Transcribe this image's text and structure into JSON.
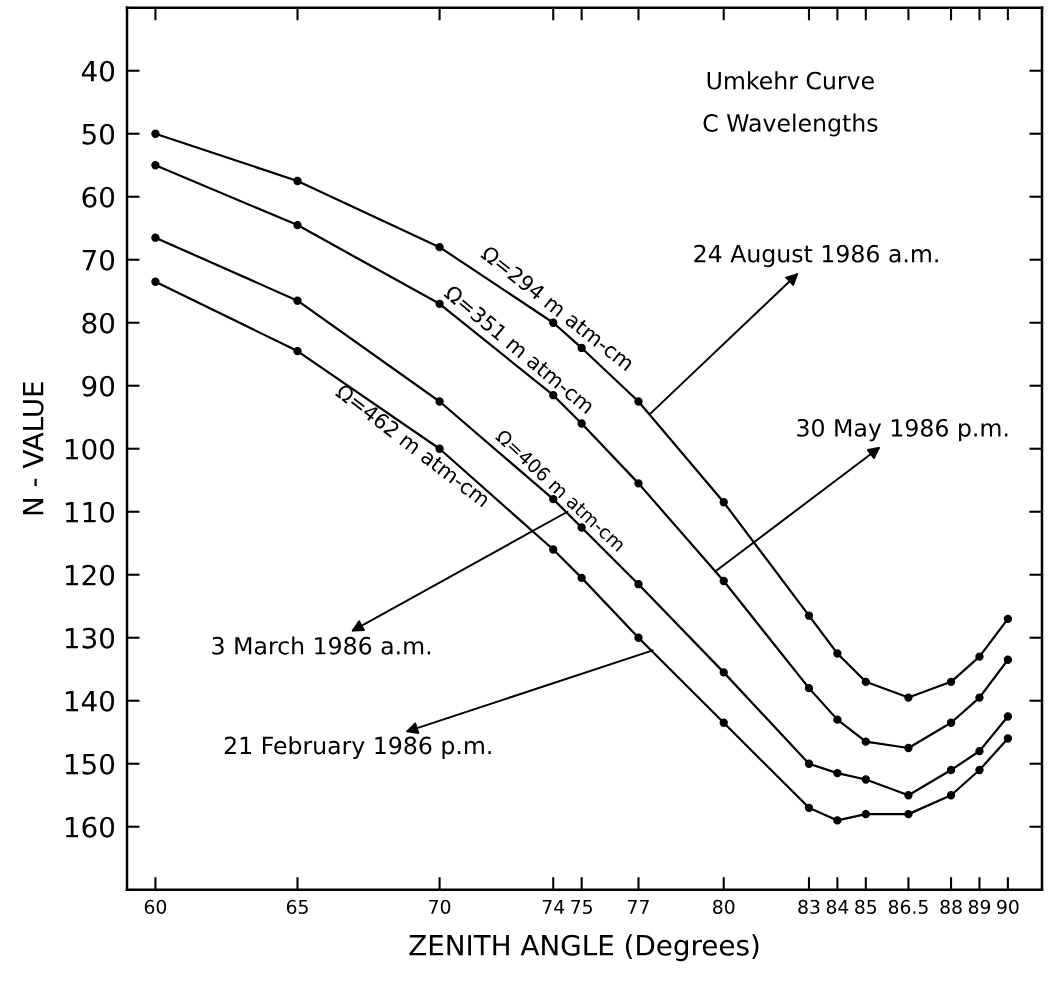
{
  "chart_data": {
    "type": "line",
    "xlabel": "ZENITH ANGLE (Degrees)",
    "ylabel": "N - VALUE",
    "x": [
      60,
      65,
      70,
      74,
      75,
      77,
      80,
      83,
      84,
      85,
      86.5,
      88,
      89,
      90
    ],
    "xlim": [
      59,
      91.2
    ],
    "xticks": [
      60,
      65,
      70,
      74,
      75,
      77,
      80,
      83,
      84,
      85,
      86.5,
      88,
      89,
      90
    ],
    "ylim": [
      170,
      30
    ],
    "yticks": [
      40,
      50,
      60,
      70,
      80,
      90,
      100,
      110,
      120,
      130,
      140,
      150,
      160
    ],
    "marker": "circle",
    "line_style": "solid",
    "series": [
      {
        "name": "Ω=294 m atm-cm",
        "color": "#000000",
        "values": [
          50,
          57.5,
          68,
          80,
          84,
          92.5,
          108.5,
          126.5,
          132.5,
          137,
          139.5,
          137,
          133,
          127
        ]
      },
      {
        "name": "Ω=351 m atm-cm",
        "color": "#000000",
        "values": [
          55,
          64.5,
          77,
          91.5,
          96,
          105.5,
          121,
          138,
          143,
          146.5,
          147.5,
          143.5,
          139.5,
          133.5
        ]
      },
      {
        "name": "Ω=406 m atm-cm",
        "color": "#000000",
        "values": [
          66.5,
          76.5,
          92.5,
          108,
          112.5,
          121.5,
          135.5,
          150,
          151.5,
          152.5,
          155,
          151,
          148,
          142.5
        ]
      },
      {
        "name": "Ω=462 m atm-cm",
        "color": "#000000",
        "values": [
          73.5,
          84.5,
          100,
          116,
          120.5,
          130,
          143.5,
          157,
          159,
          158,
          158,
          155,
          151,
          146
        ]
      }
    ],
    "annotations": [
      "Umkehr Curve",
      "C Wavelengths",
      {
        "text": "24 August 1986 a.m.",
        "x": 77.4,
        "y": 94.5
      },
      {
        "text": "30 May 1986 p.m.",
        "x": 79.7,
        "y": 119.5
      },
      {
        "text": "3 March 1986 a.m.",
        "x": 74.5,
        "y": 110
      },
      {
        "text": "21 February 1986 p.m.",
        "x": 77.5,
        "y": 132
      }
    ]
  }
}
